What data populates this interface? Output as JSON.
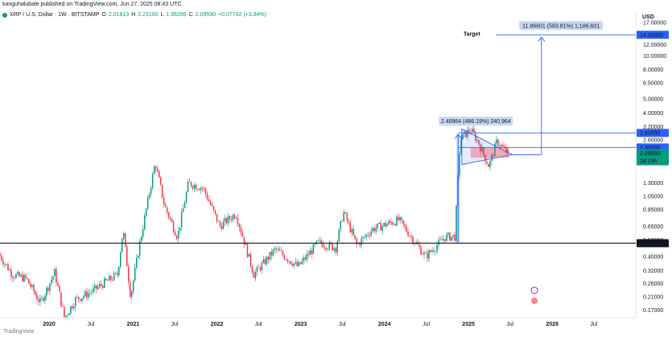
{
  "header": {
    "publisher": "kanguhalubale published on TradingView.com, Jun 27, 2025 08:43 UTC",
    "symbol": "XRP / U.S. Dollar · 1W · BITSTAMP",
    "o_label": "O",
    "o": "2.01813",
    "h_label": "H",
    "h": "2.23100",
    "l_label": "L",
    "l": "1.96289",
    "c_label": "C",
    "c": "2.09590",
    "change": "+0.07742 (+3.84%)",
    "currency": "USD"
  },
  "footer": {
    "logo_text": "TradingView"
  },
  "colors": {
    "up": "#089981",
    "down": "#f23645",
    "accent": "#2962ff",
    "line": "#131722"
  },
  "chart_data": {
    "type": "candlestick",
    "title": "XRP / U.S. Dollar · 1W · BITSTAMP",
    "y_scale": "log",
    "ylim": [
      0.15,
      17.5
    ],
    "xlim": [
      "2019-06-01",
      "2026-12-31"
    ],
    "y_ticks": [
      "17.00000",
      "12.00000",
      "10.00000",
      "8.00000",
      "6.50000",
      "5.00000",
      "4.00000",
      "3.20000",
      "2.60000",
      "1.80000",
      "1.30000",
      "1.05000",
      "0.85000",
      "0.65000",
      "0.52000",
      "0.40000",
      "0.32000",
      "0.26000",
      "0.21000",
      "0.17000"
    ],
    "x_ticks": [
      {
        "label": "2020",
        "bold": true,
        "date": "2020-01-01"
      },
      {
        "label": "Jul",
        "bold": false,
        "date": "2020-07-01"
      },
      {
        "label": "2021",
        "bold": true,
        "date": "2021-01-01"
      },
      {
        "label": "Jul",
        "bold": false,
        "date": "2021-07-01"
      },
      {
        "label": "2022",
        "bold": true,
        "date": "2022-01-01"
      },
      {
        "label": "Jul",
        "bold": false,
        "date": "2022-07-01"
      },
      {
        "label": "2023",
        "bold": true,
        "date": "2023-01-01"
      },
      {
        "label": "Jul",
        "bold": false,
        "date": "2023-07-01"
      },
      {
        "label": "2024",
        "bold": true,
        "date": "2024-01-01"
      },
      {
        "label": "Jul",
        "bold": false,
        "date": "2024-07-01"
      },
      {
        "label": "2025",
        "bold": true,
        "date": "2025-01-01"
      },
      {
        "label": "Jul",
        "bold": false,
        "date": "2025-07-01"
      },
      {
        "label": "2026",
        "bold": true,
        "date": "2026-01-01"
      },
      {
        "label": "Jul",
        "bold": false,
        "date": "2026-07-01"
      }
    ],
    "price_path": [
      [
        "2019-06-01",
        0.42
      ],
      [
        "2019-08-01",
        0.3
      ],
      [
        "2019-10-01",
        0.28
      ],
      [
        "2019-12-01",
        0.19
      ],
      [
        "2020-02-01",
        0.31
      ],
      [
        "2020-03-15",
        0.15
      ],
      [
        "2020-05-01",
        0.2
      ],
      [
        "2020-07-15",
        0.23
      ],
      [
        "2020-09-01",
        0.26
      ],
      [
        "2020-11-01",
        0.3
      ],
      [
        "2020-11-25",
        0.62
      ],
      [
        "2020-12-28",
        0.21
      ],
      [
        "2021-02-01",
        0.45
      ],
      [
        "2021-04-14",
        1.8
      ],
      [
        "2021-05-25",
        0.9
      ],
      [
        "2021-07-20",
        0.55
      ],
      [
        "2021-09-06",
        1.3
      ],
      [
        "2021-11-10",
        1.2
      ],
      [
        "2022-01-20",
        0.65
      ],
      [
        "2022-04-01",
        0.8
      ],
      [
        "2022-06-18",
        0.3
      ],
      [
        "2022-09-20",
        0.45
      ],
      [
        "2022-12-28",
        0.34
      ],
      [
        "2023-03-25",
        0.5
      ],
      [
        "2023-06-10",
        0.46
      ],
      [
        "2023-07-13",
        0.82
      ],
      [
        "2023-09-10",
        0.48
      ],
      [
        "2023-11-15",
        0.62
      ],
      [
        "2024-03-11",
        0.72
      ],
      [
        "2024-07-05",
        0.4
      ],
      [
        "2024-09-30",
        0.55
      ],
      [
        "2024-11-10",
        0.55
      ],
      [
        "2024-11-25",
        1.6
      ],
      [
        "2024-12-03",
        2.6
      ],
      [
        "2025-01-16",
        3.1
      ],
      [
        "2025-02-20",
        2.5
      ],
      [
        "2025-04-07",
        1.7
      ],
      [
        "2025-05-12",
        2.55
      ],
      [
        "2025-06-27",
        2.0959
      ]
    ],
    "horizontal_lines": [
      {
        "price": 0.49566,
        "label": "0.49566",
        "color": "#131722"
      },
      {
        "price": 2.9055,
        "label": "2.90550",
        "color": "#2962ff"
      },
      {
        "price": 2.3,
        "label": "2.30000",
        "color": "#2962ff"
      }
    ],
    "current_price": {
      "price": 2.0959,
      "label": "2.09590",
      "countdown": "2d 15h"
    },
    "target": {
      "price": 14.0,
      "label": "14.00000",
      "title": "Target",
      "measure": "11.86601 (583.81%) 1,186,601"
    },
    "prior_move": {
      "from": 0.4957,
      "to": 2.906,
      "date": "2024-11-10",
      "measure": "2.40964 (486.19%) 240,964"
    },
    "pennant": {
      "start_date": "2024-12-03",
      "end_date": "2025-07-10",
      "top": 3.1,
      "bottom": 1.75,
      "apex": 2.05
    },
    "consolidation_box": {
      "start_date": "2025-01-10",
      "end_date": "2025-06-27",
      "top": 2.3,
      "bottom": 1.95
    }
  }
}
